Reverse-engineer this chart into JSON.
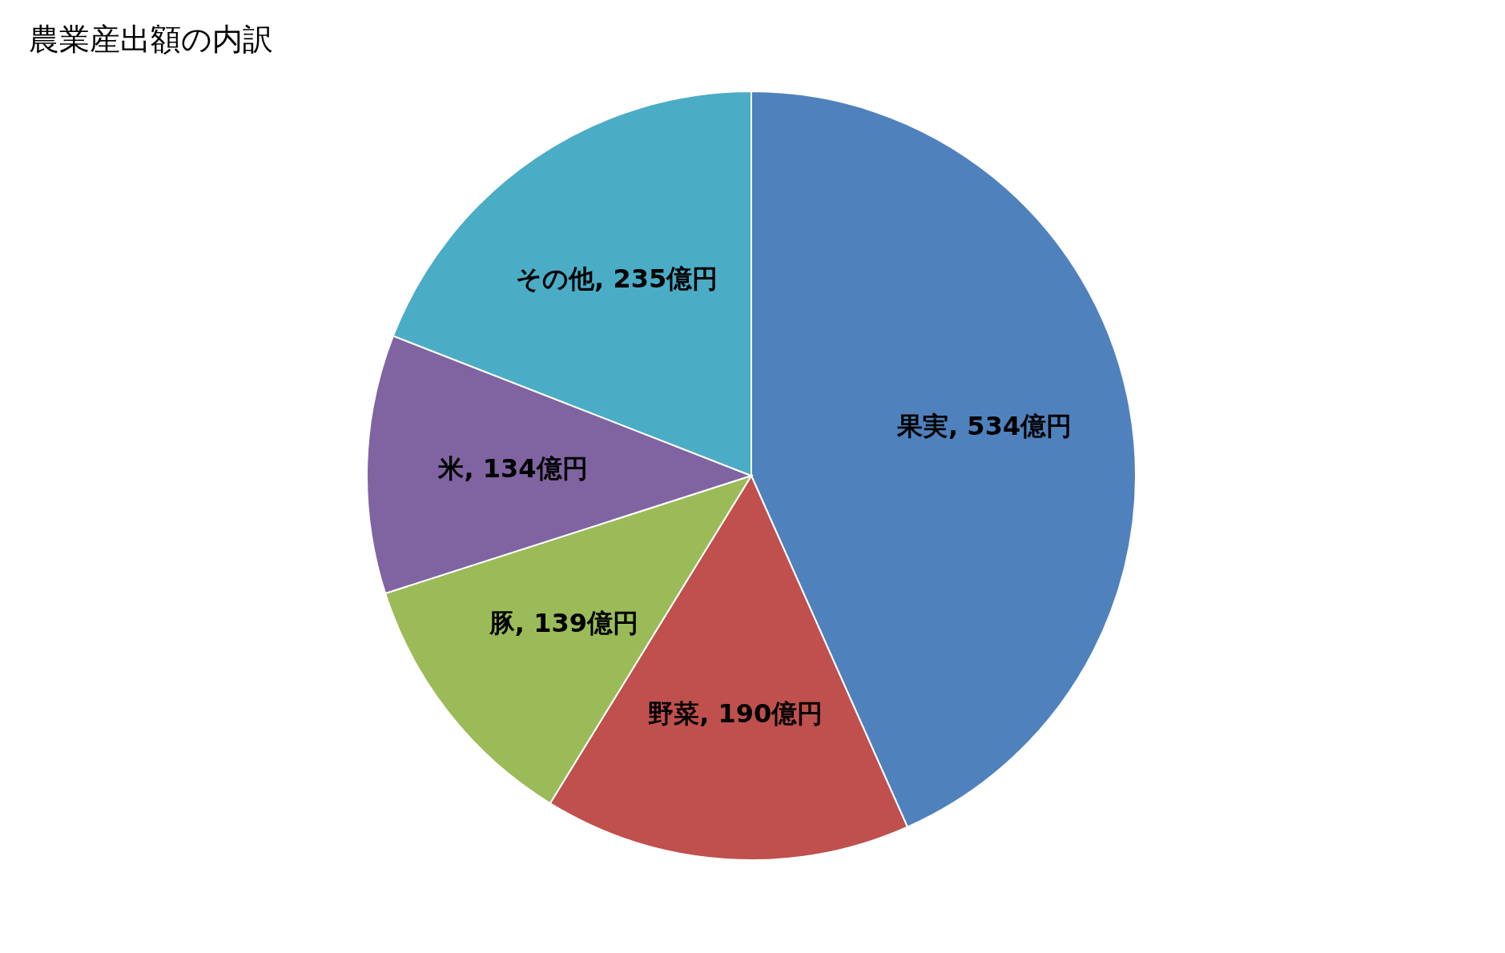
{
  "chart_data": {
    "type": "pie",
    "title": "農業産出額の内訳",
    "categories": [
      "果実",
      "野菜",
      "豚",
      "米",
      "その他"
    ],
    "values": [
      534,
      190,
      139,
      134,
      235
    ],
    "colors": [
      "#4f81bd",
      "#c0504d",
      "#9bbb59",
      "#8064a2",
      "#4bacc6"
    ],
    "value_labels": [
      "534億円",
      "190億円",
      "139億円",
      "134億円",
      "235億円"
    ]
  }
}
